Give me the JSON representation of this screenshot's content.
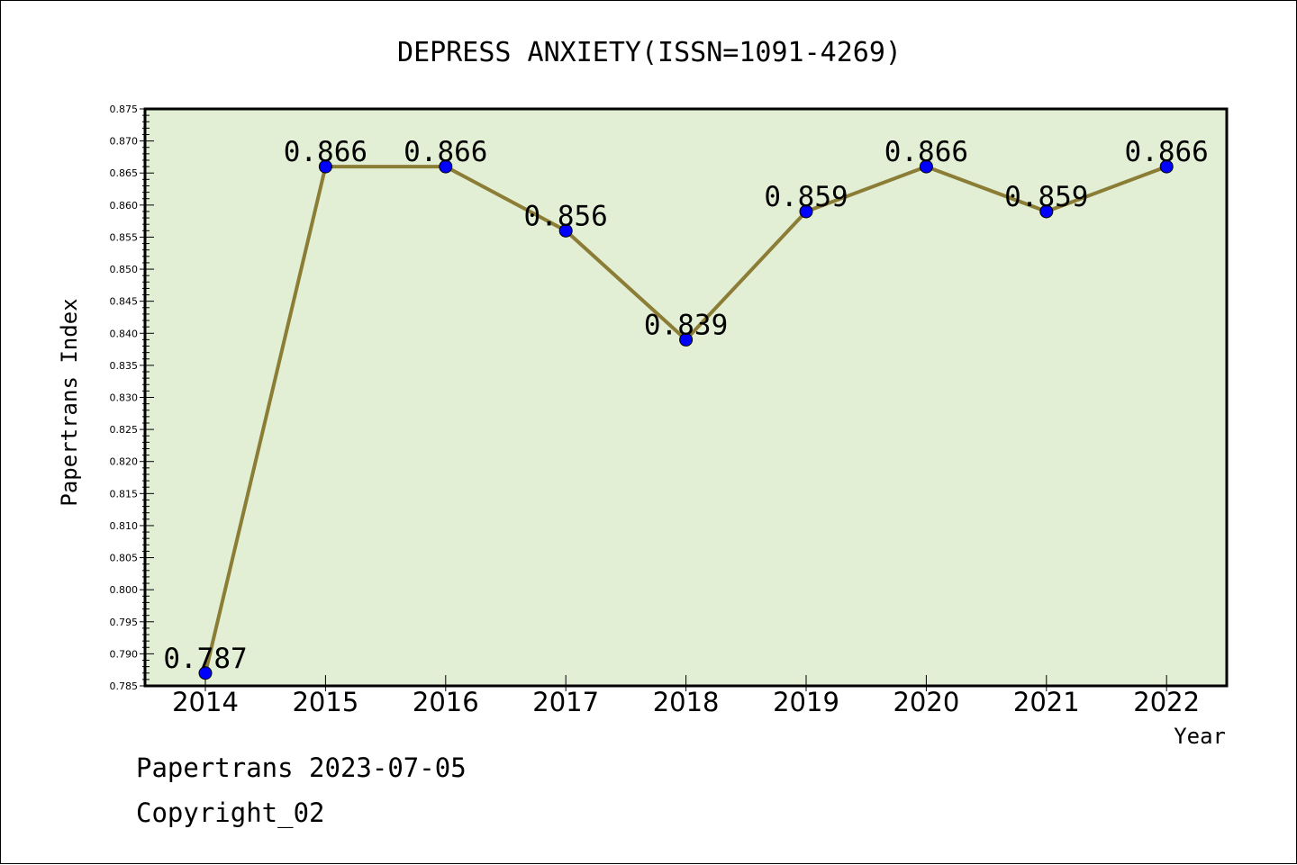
{
  "chart_data": {
    "type": "line",
    "title": "DEPRESS ANXIETY(ISSN=1091-4269)",
    "xlabel": "Year",
    "ylabel": "Papertrans Index",
    "categories": [
      "2014",
      "2015",
      "2016",
      "2017",
      "2018",
      "2019",
      "2020",
      "2021",
      "2022"
    ],
    "series": [
      {
        "values": [
          0.787,
          0.866,
          0.866,
          0.856,
          0.839,
          0.859,
          0.866,
          0.859,
          0.866
        ],
        "data_labels": [
          "0.787",
          "0.866",
          "0.866",
          "0.856",
          "0.839",
          "0.859",
          "0.866",
          "0.859",
          "0.866"
        ]
      }
    ],
    "ylim": [
      0.785,
      0.875
    ],
    "yticks": [
      "0.785",
      "0.790",
      "0.795",
      "0.800",
      "0.805",
      "0.810",
      "0.815",
      "0.820",
      "0.825",
      "0.830",
      "0.835",
      "0.840",
      "0.845",
      "0.850",
      "0.855",
      "0.860",
      "0.865",
      "0.870",
      "0.875"
    ],
    "grid": false,
    "colors": {
      "plot_background": "#e2efd5",
      "line": "#8b7d35",
      "marker": "#0000ff"
    }
  },
  "footer": {
    "line1": "Papertrans 2023-07-05",
    "line2": "Copyright_02"
  }
}
